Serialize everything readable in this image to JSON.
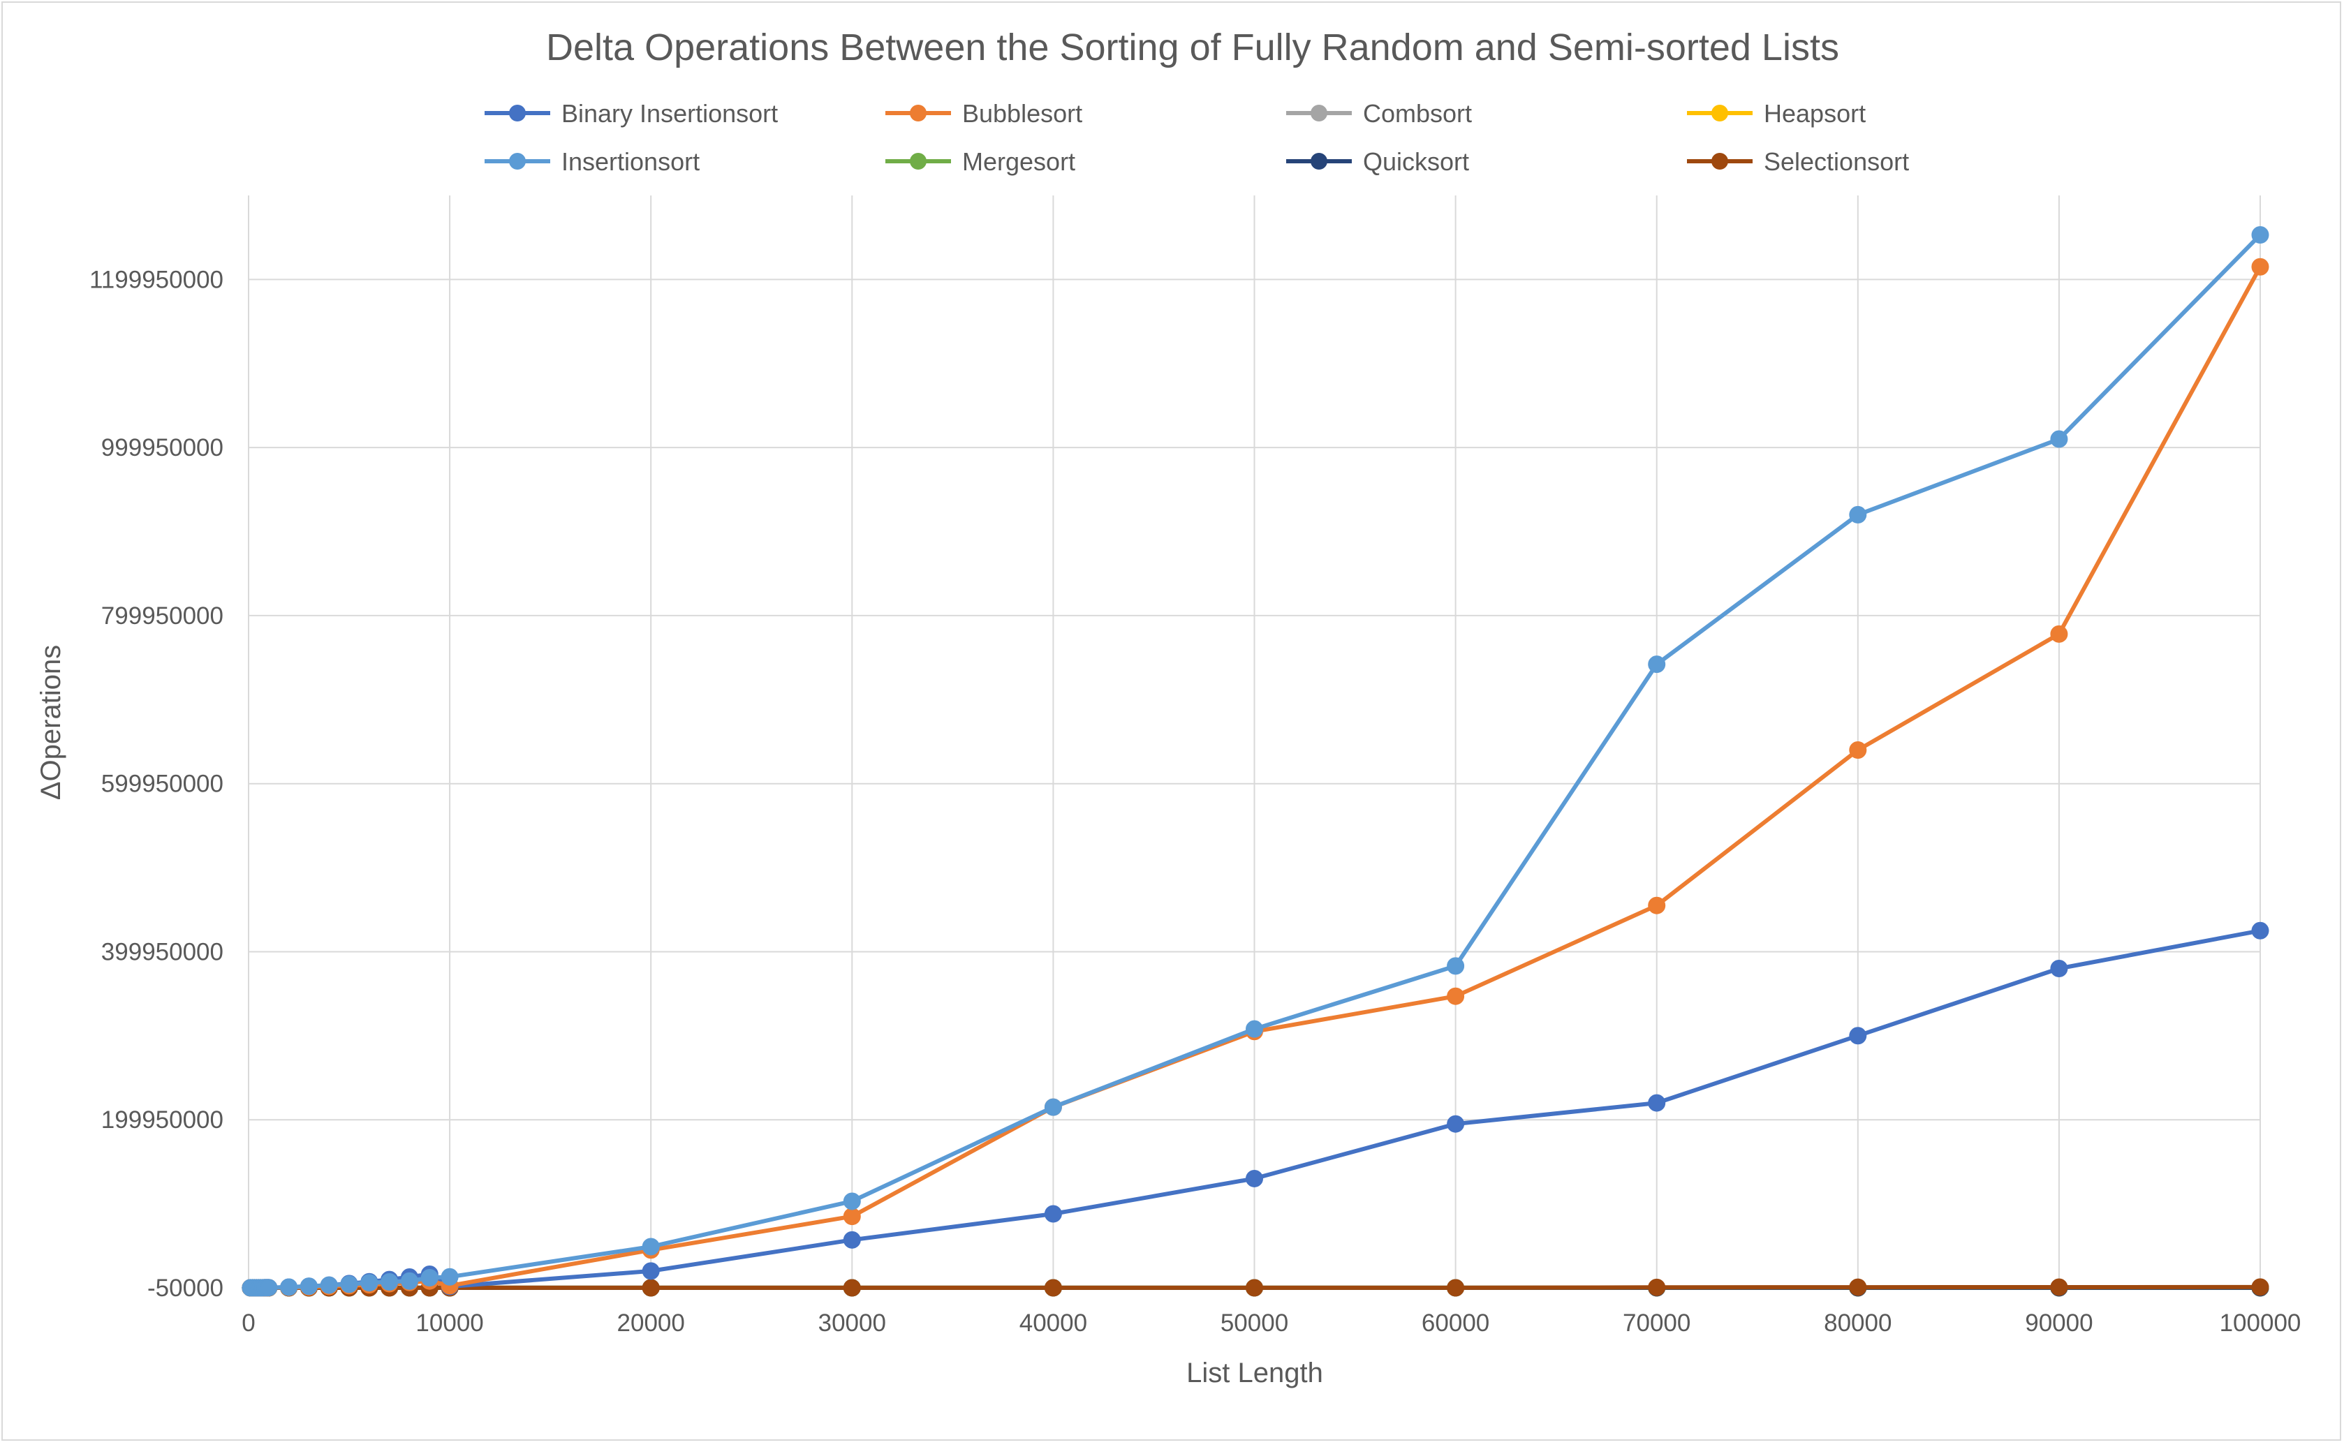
{
  "chart_data": {
    "type": "line",
    "title": "Delta Operations Between the Sorting of Fully Random and Semi-sorted Lists",
    "xlabel": "List Length",
    "ylabel": "ΔOperations",
    "x_ticks": [
      "0",
      "10000",
      "20000",
      "30000",
      "40000",
      "50000",
      "60000",
      "70000",
      "80000",
      "90000",
      "100000"
    ],
    "y_ticks": [
      "-50000",
      "199950000",
      "399950000",
      "599950000",
      "799950000",
      "999950000",
      "1199950000"
    ],
    "xlim": [
      0,
      100000
    ],
    "ylim": [
      -50000,
      1299950000
    ],
    "grid": true,
    "legend_position": "top",
    "x": [
      100,
      200,
      300,
      400,
      500,
      600,
      700,
      800,
      900,
      1000,
      2000,
      3000,
      4000,
      5000,
      6000,
      7000,
      8000,
      9000,
      10000,
      20000,
      30000,
      40000,
      50000,
      60000,
      70000,
      80000,
      90000,
      100000
    ],
    "series": [
      {
        "name": "Binary Insertionsort",
        "color": "#4472c4",
        "values": [
          2000,
          8000,
          18000,
          32000,
          50000,
          72000,
          98000,
          128000,
          162000,
          200000,
          800000,
          1800000,
          3200000,
          5000000,
          7200000,
          9800000,
          12800000,
          16200000,
          1500000,
          20000000,
          57000000,
          88000000,
          130000000,
          195000000,
          220000000,
          300000000,
          380000000,
          425000000
        ]
      },
      {
        "name": "Bubblesort",
        "color": "#ed7d31",
        "values": [
          1000,
          4000,
          9000,
          16000,
          25000,
          36000,
          49000,
          64000,
          81000,
          100000,
          400000,
          900000,
          1600000,
          2500000,
          3600000,
          4900000,
          6400000,
          8100000,
          2500000,
          45000000,
          85000000,
          215000000,
          305000000,
          347000000,
          455000000,
          640000000,
          778000000,
          1215000000
        ]
      },
      {
        "name": "Combsort",
        "color": "#a5a5a5",
        "values": [
          0,
          0,
          0,
          0,
          0,
          0,
          0,
          0,
          0,
          0,
          0,
          0,
          0,
          0,
          0,
          0,
          0,
          0,
          0,
          0,
          0,
          0,
          0,
          0,
          0,
          0,
          0,
          0
        ]
      },
      {
        "name": "Heapsort",
        "color": "#ffc000",
        "values": [
          0,
          0,
          0,
          0,
          0,
          0,
          0,
          0,
          0,
          0,
          0,
          0,
          0,
          0,
          0,
          0,
          0,
          0,
          0,
          0,
          0,
          0,
          0,
          0,
          0,
          0,
          0,
          0
        ]
      },
      {
        "name": "Insertionsort",
        "color": "#5b9bd5",
        "values": [
          2000,
          8000,
          18000,
          32000,
          50000,
          72000,
          98000,
          128000,
          162000,
          200000,
          800000,
          1800000,
          3200000,
          4200000,
          6000000,
          7000000,
          8000000,
          12000000,
          13000000,
          49000000,
          103000000,
          215000000,
          308000000,
          383000000,
          742000000,
          920000000,
          1010000000,
          1253000000
        ]
      },
      {
        "name": "Mergesort",
        "color": "#70ad47",
        "values": [
          0,
          0,
          0,
          0,
          0,
          0,
          0,
          0,
          0,
          0,
          0,
          0,
          0,
          0,
          0,
          0,
          0,
          0,
          0,
          0,
          0,
          0,
          0,
          0,
          0,
          0,
          0,
          0
        ]
      },
      {
        "name": "Quicksort",
        "color": "#264478",
        "values": [
          0,
          0,
          0,
          0,
          0,
          0,
          0,
          0,
          0,
          0,
          0,
          0,
          0,
          0,
          0,
          0,
          0,
          0,
          0,
          0,
          0,
          0,
          0,
          0,
          0,
          0,
          0,
          0
        ]
      },
      {
        "name": "Selectionsort",
        "color": "#9e480e",
        "values": [
          0,
          0,
          0,
          0,
          0,
          0,
          0,
          0,
          0,
          0,
          0,
          0,
          0,
          0,
          0,
          0,
          0,
          0,
          0,
          0,
          0,
          0,
          0,
          0,
          500000,
          700000,
          800000,
          900000
        ]
      }
    ]
  }
}
